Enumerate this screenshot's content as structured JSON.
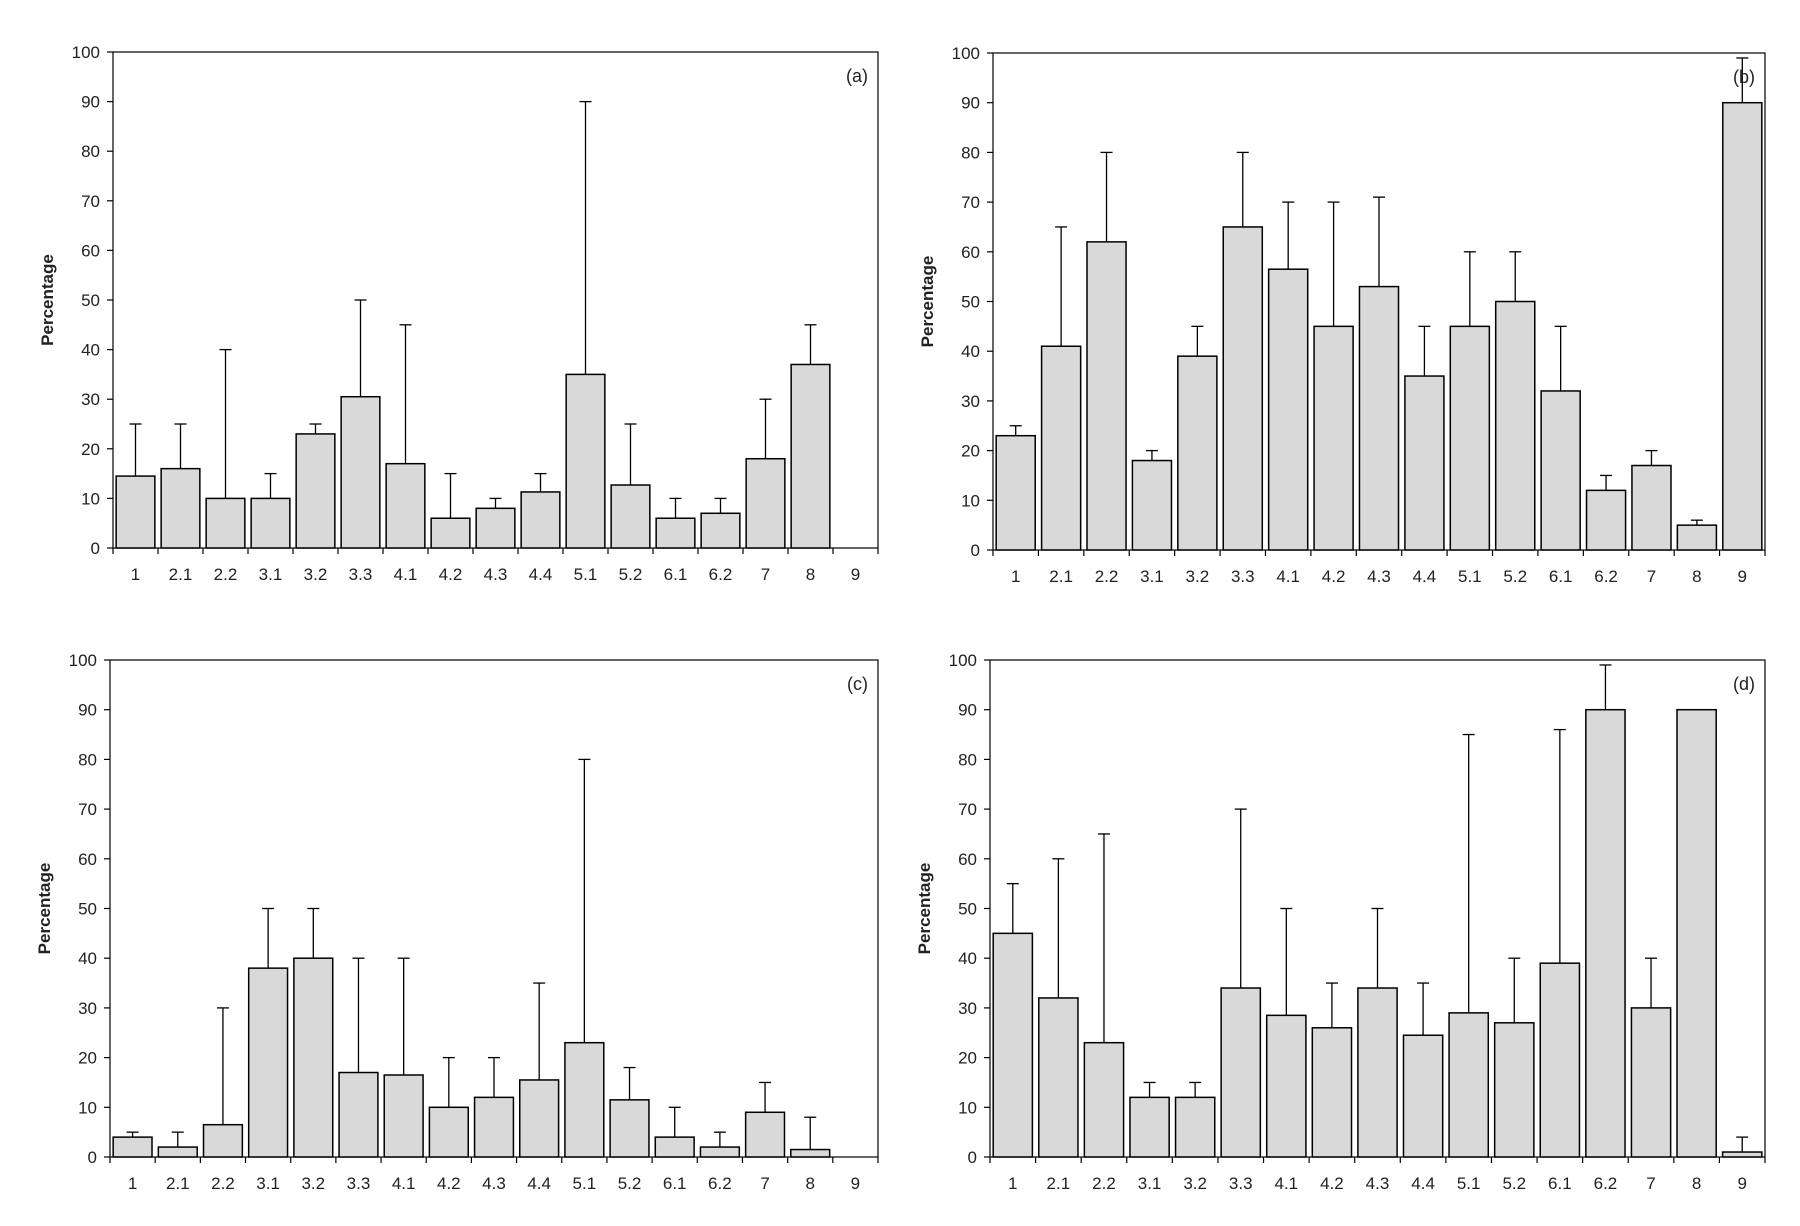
{
  "chart_data": [
    {
      "type": "bar",
      "panel_label": "(a)",
      "ylabel": "Percentage",
      "xlabel": "",
      "ylim": [
        0,
        100
      ],
      "yticks": [
        0,
        10,
        20,
        30,
        40,
        50,
        60,
        70,
        80,
        90,
        100
      ],
      "categories": [
        "1",
        "2.1",
        "2.2",
        "3.1",
        "3.2",
        "3.3",
        "4.1",
        "4.2",
        "4.3",
        "4.4",
        "5.1",
        "5.2",
        "6.1",
        "6.2",
        "7",
        "8",
        "9"
      ],
      "values": [
        14.5,
        16,
        10,
        10,
        23,
        30.5,
        17,
        6,
        8,
        11.3,
        35,
        12.7,
        6,
        7,
        18,
        37,
        0
      ],
      "error_upper": [
        25,
        25,
        40,
        15,
        25,
        50,
        45,
        15,
        10,
        15,
        90,
        25,
        10,
        10,
        30,
        45,
        null
      ]
    },
    {
      "type": "bar",
      "panel_label": "(b)",
      "ylabel": "Percentage",
      "xlabel": "",
      "ylim": [
        0,
        100
      ],
      "yticks": [
        0,
        10,
        20,
        30,
        40,
        50,
        60,
        70,
        80,
        90,
        100
      ],
      "categories": [
        "1",
        "2.1",
        "2.2",
        "3.1",
        "3.2",
        "3.3",
        "4.1",
        "4.2",
        "4.3",
        "4.4",
        "5.1",
        "5.2",
        "6.1",
        "6.2",
        "7",
        "8",
        "9"
      ],
      "values": [
        23,
        41,
        62,
        18,
        39,
        65,
        56.5,
        45,
        53,
        35,
        45,
        50,
        32,
        12,
        17,
        5,
        90
      ],
      "error_upper": [
        25,
        65,
        80,
        20,
        45,
        80,
        70,
        70,
        71,
        45,
        60,
        60,
        45,
        15,
        20,
        6,
        99
      ]
    },
    {
      "type": "bar",
      "panel_label": "(c)",
      "ylabel": "Percentage",
      "xlabel": "",
      "ylim": [
        0,
        100
      ],
      "yticks": [
        0,
        10,
        20,
        30,
        40,
        50,
        60,
        70,
        80,
        90,
        100
      ],
      "categories": [
        "1",
        "2.1",
        "2.2",
        "3.1",
        "3.2",
        "3.3",
        "4.1",
        "4.2",
        "4.3",
        "4.4",
        "5.1",
        "5.2",
        "6.1",
        "6.2",
        "7",
        "8",
        "9"
      ],
      "values": [
        4,
        2,
        6.5,
        38,
        40,
        17,
        16.5,
        10,
        12,
        15.5,
        23,
        11.5,
        4,
        2,
        9,
        1.5,
        0
      ],
      "error_upper": [
        5,
        5,
        30,
        50,
        50,
        40,
        40,
        20,
        20,
        35,
        80,
        18,
        10,
        5,
        15,
        8,
        null
      ]
    },
    {
      "type": "bar",
      "panel_label": "(d)",
      "ylabel": "Percentage",
      "xlabel": "",
      "ylim": [
        0,
        100
      ],
      "yticks": [
        0,
        10,
        20,
        30,
        40,
        50,
        60,
        70,
        80,
        90,
        100
      ],
      "categories": [
        "1",
        "2.1",
        "2.2",
        "3.1",
        "3.2",
        "3.3",
        "4.1",
        "4.2",
        "4.3",
        "4.4",
        "5.1",
        "5.2",
        "6.1",
        "6.2",
        "7",
        "8",
        "9"
      ],
      "values": [
        45,
        32,
        23,
        12,
        12,
        34,
        28.5,
        26,
        34,
        24.5,
        29,
        27,
        39,
        90,
        30,
        90,
        1
      ],
      "error_upper": [
        55,
        60,
        65,
        15,
        15,
        70,
        50,
        35,
        50,
        35,
        85,
        40,
        86,
        99,
        40,
        null,
        4
      ]
    }
  ],
  "colors": {
    "bar_fill": "#d9d9d9",
    "bar_stroke": "#000000",
    "axis": "#000000"
  }
}
